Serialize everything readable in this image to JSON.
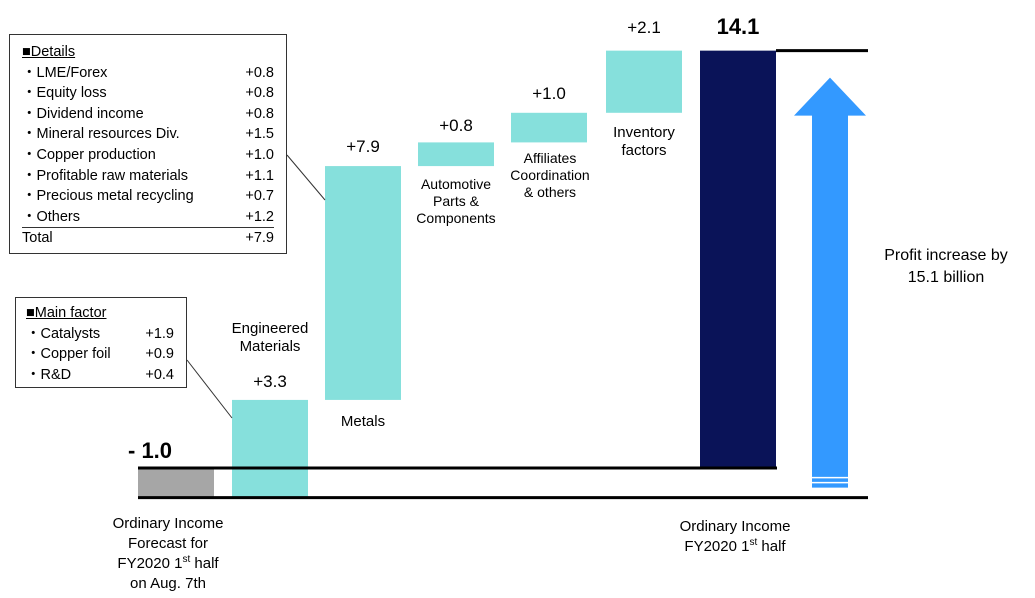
{
  "colors": {
    "increase": "#86e0dc",
    "start": "#a6a6a6",
    "end": "#0a1358",
    "arrow": "#3399ff"
  },
  "chart_data": {
    "type": "bar",
    "subtype": "waterfall",
    "categories": [
      "Ordinary Income Forecast for FY2020 1st half on Aug. 7th",
      "Engineered Materials",
      "Metals",
      "Automotive Parts & Components",
      "Affiliates Coordination & others",
      "Inventory factors",
      "Ordinary Income FY2020 1st half"
    ],
    "values": [
      -1.0,
      3.3,
      7.9,
      0.8,
      1.0,
      2.1,
      14.1
    ],
    "value_labels": [
      "- 1.0",
      "+3.3",
      "+7.9",
      "+0.8",
      "+1.0",
      "+2.1",
      "14.1"
    ],
    "ylim": [
      -1.0,
      14.1
    ],
    "grid": false,
    "annotation": {
      "line1": "Profit increase by",
      "line2": "15.1 billion",
      "value": 15.1
    }
  },
  "labels": {
    "start_line1": "Ordinary Income",
    "start_line2": "Forecast for",
    "start_line3_pre": "FY2020 1",
    "start_line3_sup": "st",
    "start_line3_post": " half",
    "start_line4": "on Aug. 7th",
    "end_line1": "Ordinary Income",
    "end_line2_pre": "FY2020 1",
    "end_line2_sup": "st",
    "end_line2_post": " half",
    "engineered_line1": "Engineered",
    "engineered_line2": "Materials",
    "metals": "Metals",
    "auto_line1": "Automotive",
    "auto_line2": "Parts &",
    "auto_line3": "Components",
    "aff_line1": "Affiliates",
    "aff_line2": "Coordination",
    "aff_line3": "& others",
    "inv_line1": "Inventory",
    "inv_line2": "factors"
  },
  "details_box": {
    "title": "■Details",
    "items": [
      {
        "name": "・LME/Forex",
        "value": "+0.8"
      },
      {
        "name": "・Equity loss",
        "value": "+0.8"
      },
      {
        "name": "・Dividend income",
        "value": "+0.8"
      },
      {
        "name": "・Mineral resources Div.",
        "value": "+1.5"
      },
      {
        "name": "・Copper production",
        "value": "+1.0"
      },
      {
        "name": "・Profitable raw materials",
        "value": "+1.1"
      },
      {
        "name": "・Precious metal recycling",
        "value": "+0.7"
      },
      {
        "name": "・Others",
        "value": "+1.2"
      }
    ],
    "total_label": "Total",
    "total_value": "+7.9"
  },
  "main_factor_box": {
    "title": "■Main factor",
    "items": [
      {
        "name": "・Catalysts",
        "value": "+1.9"
      },
      {
        "name": "・Copper foil",
        "value": "+0.9"
      },
      {
        "name": "・R&D",
        "value": "+0.4"
      }
    ]
  }
}
